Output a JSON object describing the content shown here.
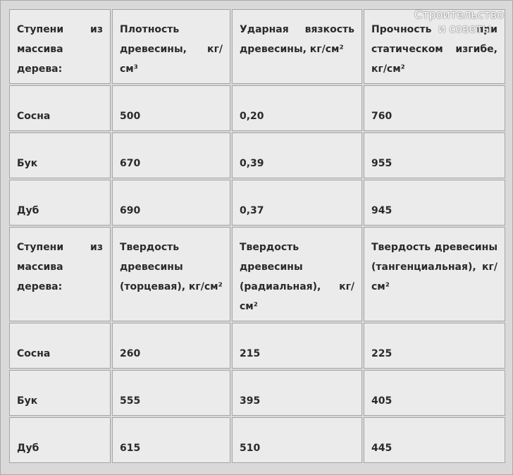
{
  "watermark": {
    "line1": "Строительство",
    "line2": "и советы"
  },
  "table": {
    "sections": [
      {
        "header": [
          "Ступени из массива дерева:",
          "Плотность древесины, кг/см³",
          "Ударная вязкость древесины, кг/см²",
          "Прочность при статическом изгибе, кг/см²"
        ],
        "rows": [
          [
            "Сосна",
            "500",
            "0,20",
            "760"
          ],
          [
            "Бук",
            "670",
            "0,39",
            "955"
          ],
          [
            "Дуб",
            "690",
            "0,37",
            "945"
          ]
        ]
      },
      {
        "header": [
          "Ступени из массива дерева:",
          "Твердость древесины (торцевая), кг/см²",
          "Твердость древесины (радиальная), кг/см²",
          "Твердость древесины (тангенциальная), кг/см²"
        ],
        "rows": [
          [
            "Сосна",
            "260",
            "215",
            "225"
          ],
          [
            "Бук",
            "555",
            "395",
            "405"
          ],
          [
            "Дуб",
            "615",
            "510",
            "445"
          ]
        ]
      }
    ]
  }
}
